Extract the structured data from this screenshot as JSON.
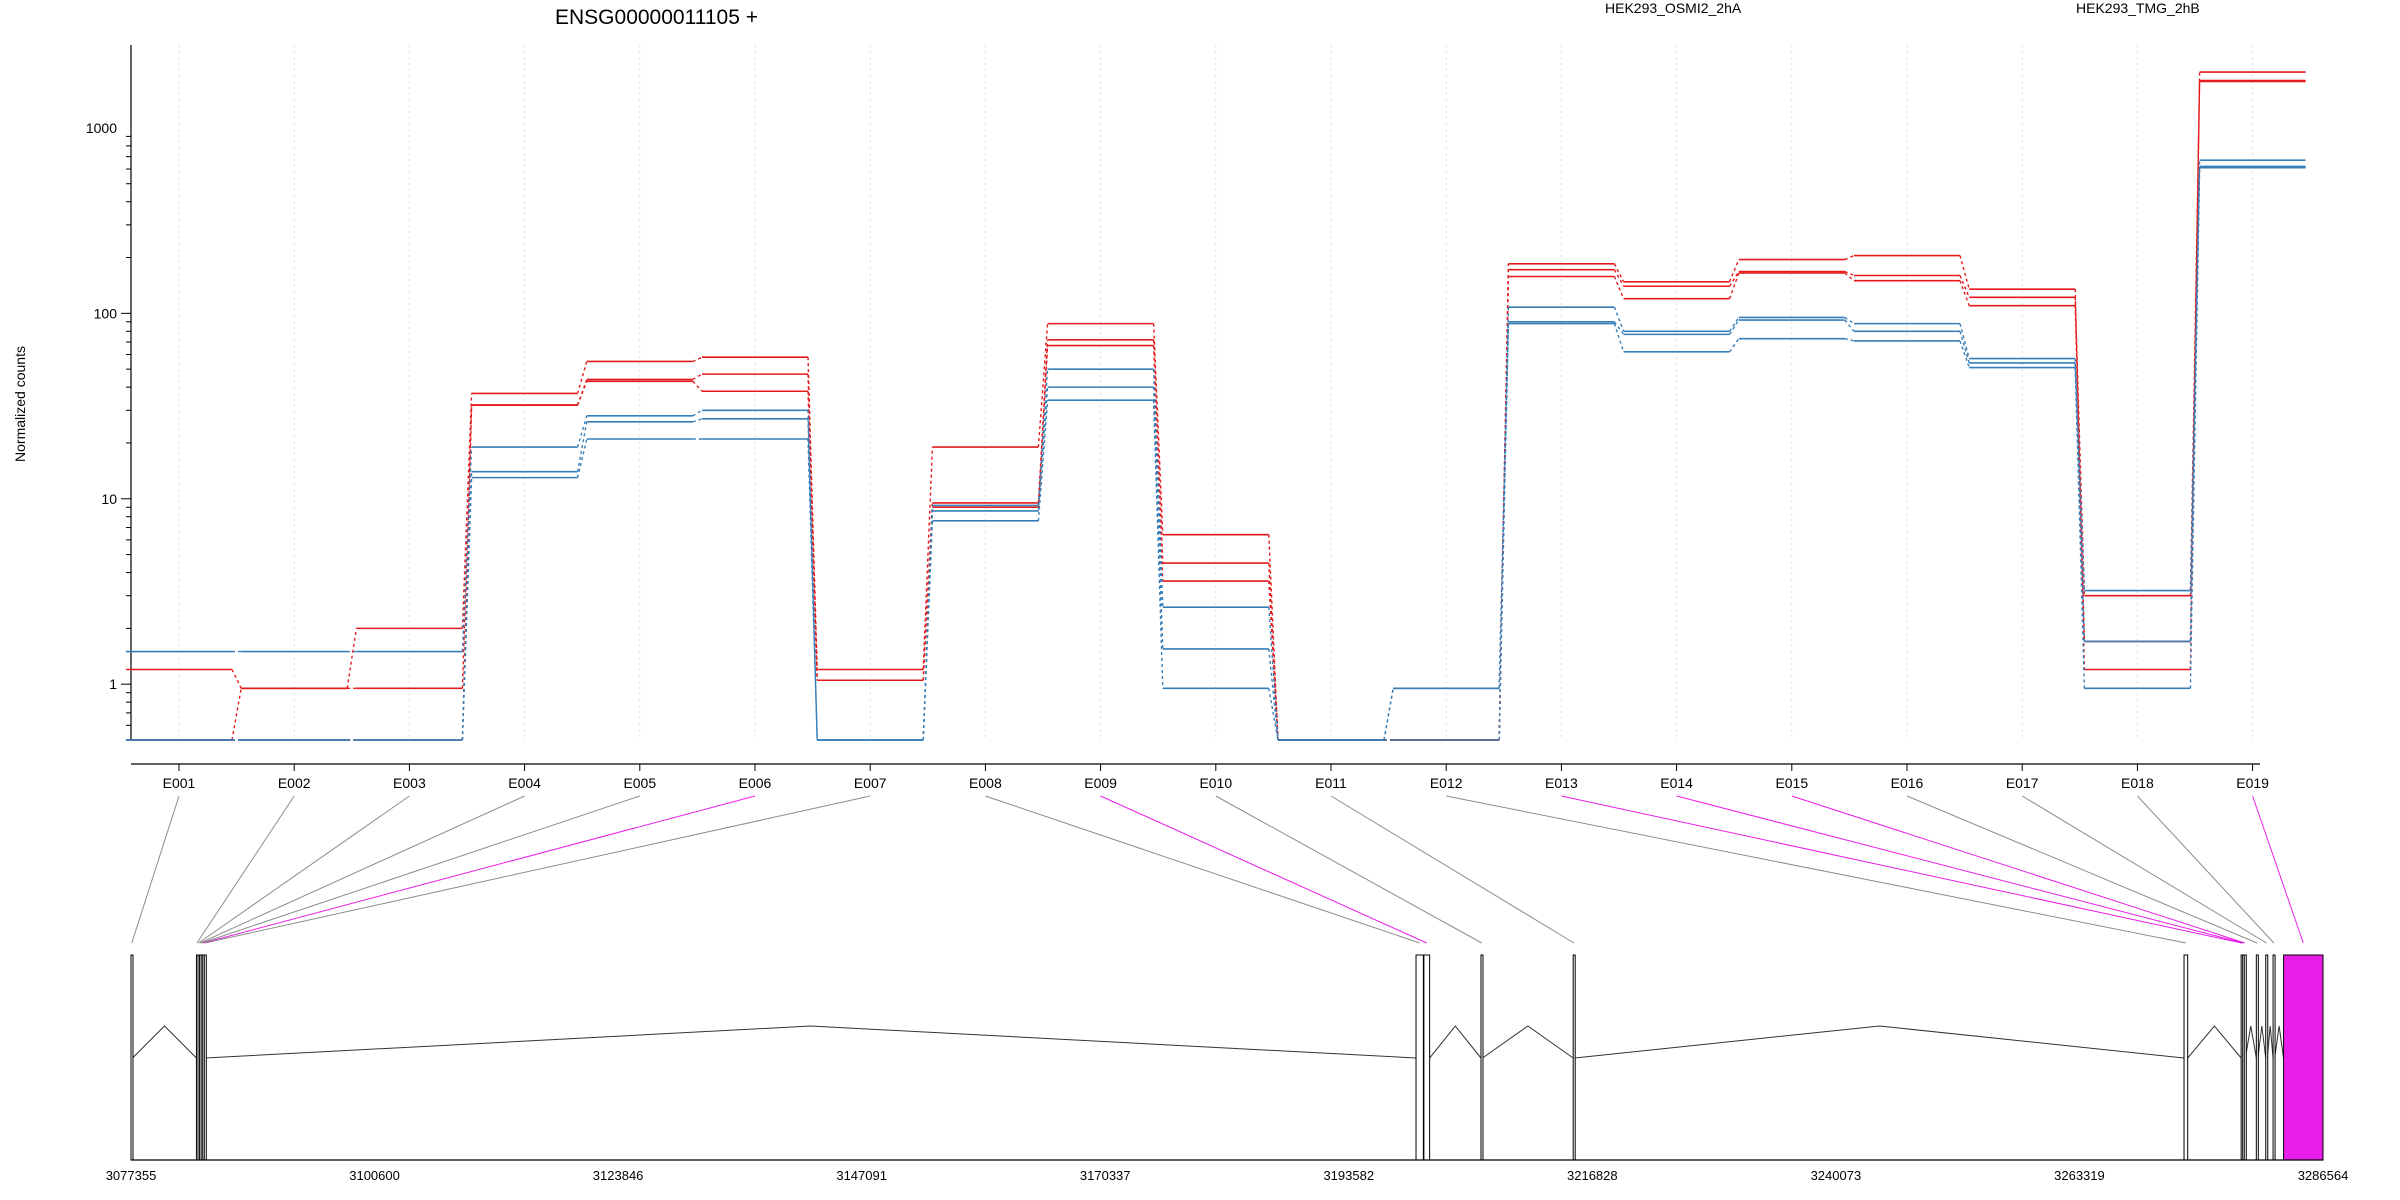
{
  "chart_data": {
    "type": "line",
    "title": "ENSG00000011105 +",
    "ylabel": "Normalized counts",
    "xlabel": "",
    "yscale": "log",
    "ylim": [
      0.5,
      2800
    ],
    "y_ticks": [
      1,
      10,
      100,
      1000
    ],
    "y_tick_labels": [
      "1",
      "10",
      "100",
      "1000"
    ],
    "grid": "vertical dotted lines at exon bins",
    "categories": [
      "E001",
      "E002",
      "E003",
      "E004",
      "E005",
      "E006",
      "E007",
      "E008",
      "E009",
      "E010",
      "E011",
      "E012",
      "E013",
      "E014",
      "E015",
      "E016",
      "E017",
      "E018",
      "E019"
    ],
    "legend": [
      {
        "name": "HEK293_OSMI2_2hA",
        "color": "#e41a1c"
      },
      {
        "name": "HEK293_TMG_2hB",
        "color": "#377eb8"
      }
    ],
    "series": [
      {
        "group": "HEK293_OSMI2_2hA",
        "color": "#e41a1c",
        "values": [
          1.2,
          0.95,
          2.0,
          37,
          55,
          58,
          1.2,
          19,
          88,
          6.4,
          0.5,
          0.5,
          185,
          148,
          195,
          205,
          135,
          1.2,
          2000
        ]
      },
      {
        "group": "HEK293_OSMI2_2hA",
        "color": "#e41a1c",
        "values": [
          0.5,
          0.95,
          0.95,
          32,
          44,
          47,
          1.05,
          9.5,
          72,
          4.5,
          0.5,
          0.5,
          172,
          140,
          168,
          160,
          122,
          3.0,
          1800
        ]
      },
      {
        "group": "HEK293_OSMI2_2hA",
        "color": "#e41a1c",
        "values": [
          0.5,
          0.5,
          0.5,
          32,
          43,
          38,
          1.05,
          9.0,
          67,
          3.6,
          0.5,
          0.5,
          158,
          120,
          165,
          150,
          110,
          1.7,
          1780
        ]
      },
      {
        "group": "HEK293_TMG_2hB",
        "color": "#377eb8",
        "values": [
          1.5,
          1.5,
          1.5,
          19,
          28,
          30,
          0.5,
          9.2,
          50,
          2.6,
          0.5,
          0.95,
          108,
          80,
          95,
          88,
          57,
          3.2,
          670
        ]
      },
      {
        "group": "HEK293_TMG_2hB",
        "color": "#377eb8",
        "values": [
          0.5,
          0.5,
          0.5,
          14,
          26,
          27,
          0.5,
          8.6,
          40,
          1.55,
          0.5,
          0.95,
          90,
          77,
          92,
          80,
          54,
          1.7,
          620
        ]
      },
      {
        "group": "HEK293_TMG_2hB",
        "color": "#377eb8",
        "values": [
          0.5,
          0.5,
          0.5,
          13,
          21,
          21,
          0.5,
          7.6,
          34,
          0.95,
          0.5,
          0.5,
          88,
          62,
          73,
          71,
          51,
          0.95,
          610
        ]
      }
    ],
    "highlighted_bins": [
      "E006",
      "E009",
      "E013",
      "E014",
      "E015",
      "E019"
    ],
    "gene_model": {
      "coord_ticks": [
        "3077355",
        "3100600",
        "3123846",
        "3147091",
        "3170337",
        "3193582",
        "3216828",
        "3240073",
        "3263319",
        "3286564"
      ],
      "range": [
        3077355,
        3286564
      ],
      "exons": [
        {
          "bin": "E001",
          "start": 3077355,
          "end": 3077500
        },
        {
          "bin": "E002",
          "start": 3083600,
          "end": 3083700
        },
        {
          "bin": "E003",
          "start": 3083750,
          "end": 3083850
        },
        {
          "bin": "E004",
          "start": 3083900,
          "end": 3084000
        },
        {
          "bin": "E005",
          "start": 3084050,
          "end": 3084150
        },
        {
          "bin": "E006",
          "start": 3084200,
          "end": 3084300
        },
        {
          "bin": "E007",
          "start": 3084350,
          "end": 3084450
        },
        {
          "bin": "E008",
          "start": 3200000,
          "end": 3200700
        },
        {
          "bin": "E009",
          "start": 3200750,
          "end": 3201300
        },
        {
          "bin": "E010",
          "start": 3206200,
          "end": 3206350
        },
        {
          "bin": "E011",
          "start": 3215000,
          "end": 3215150
        },
        {
          "bin": "E012",
          "start": 3273300,
          "end": 3273650
        },
        {
          "bin": "E013",
          "start": 3278750,
          "end": 3278850
        },
        {
          "bin": "E014",
          "start": 3278900,
          "end": 3279000
        },
        {
          "bin": "E015",
          "start": 3279050,
          "end": 3279150
        },
        {
          "bin": "E016",
          "start": 3280200,
          "end": 3280350
        },
        {
          "bin": "E017",
          "start": 3281100,
          "end": 3281250
        },
        {
          "bin": "E018",
          "start": 3281800,
          "end": 3281950
        },
        {
          "bin": "E019",
          "start": 3282800,
          "end": 3286564
        }
      ]
    }
  },
  "colors": {
    "osmi": "#e41a1c",
    "tmg": "#377eb8",
    "highlight": "#e81ee8",
    "grey_exon": "#c8c8c8",
    "connector": "#8c8c8c"
  }
}
